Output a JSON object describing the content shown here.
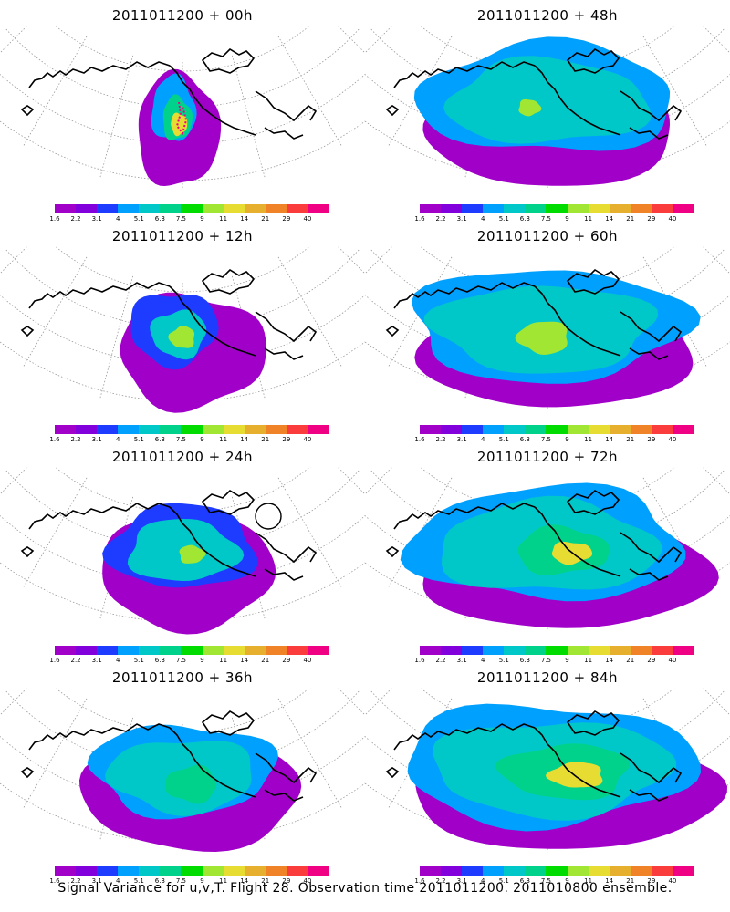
{
  "panels": [
    {
      "title": "2011011200 + 00h"
    },
    {
      "title": "2011011200 + 48h"
    },
    {
      "title": "2011011200 + 12h"
    },
    {
      "title": "2011011200 + 60h"
    },
    {
      "title": "2011011200 + 24h"
    },
    {
      "title": "2011011200 + 72h"
    },
    {
      "title": "2011011200 + 36h"
    },
    {
      "title": "2011011200 + 84h"
    }
  ],
  "colorbar": {
    "labels": [
      "1.6",
      "2.2",
      "3.1",
      "4",
      "5.1",
      "6.3",
      "7.5",
      "9",
      "11",
      "14",
      "21",
      "29",
      "40"
    ],
    "colors": [
      "#a000c8",
      "#8200dc",
      "#1e3cff",
      "#00a0ff",
      "#00c8c8",
      "#00d28c",
      "#00dc00",
      "#a0e632",
      "#e6dc32",
      "#e6af2d",
      "#f08228",
      "#fa3c3c",
      "#f00082"
    ]
  },
  "footer": "Signal Variance for u,v,T. Flight 28. Observation time 2011011200. 2011010800 ensemble."
}
